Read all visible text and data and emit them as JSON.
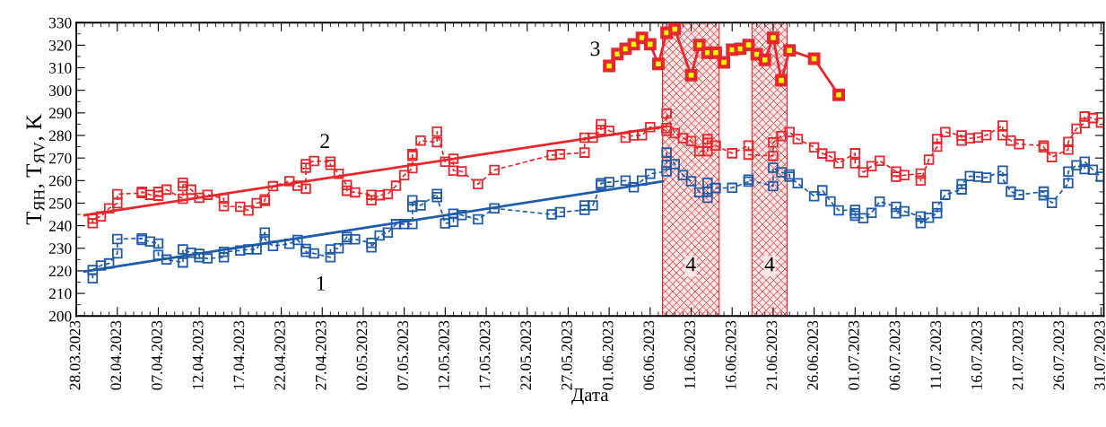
{
  "chart_data": {
    "type": "line",
    "xlabel": "Дата",
    "ylabel": "T$_{ЯН}$, T$_{ЯV}$, K",
    "xlim": [
      "2023-03-28",
      "2023-07-31T08:00"
    ],
    "ylim": [
      200,
      330
    ],
    "yticks": [
      200,
      210,
      220,
      230,
      240,
      250,
      260,
      270,
      280,
      290,
      300,
      310,
      320,
      330
    ],
    "xticks": [
      {
        "value": "2023-03-28",
        "label": "28.03.2023"
      },
      {
        "value": "2023-04-02",
        "label": "02.04.2023"
      },
      {
        "value": "2023-04-07",
        "label": "07.04.2023"
      },
      {
        "value": "2023-04-12",
        "label": "12.04.2023"
      },
      {
        "value": "2023-04-17",
        "label": "17.04.2023"
      },
      {
        "value": "2023-04-22",
        "label": "22.04.2023"
      },
      {
        "value": "2023-04-27",
        "label": "27.04.2023"
      },
      {
        "value": "2023-05-02",
        "label": "02.05.2023"
      },
      {
        "value": "2023-05-07",
        "label": "07.05.2023"
      },
      {
        "value": "2023-05-12",
        "label": "12.05.2023"
      },
      {
        "value": "2023-05-17",
        "label": "17.05.2023"
      },
      {
        "value": "2023-05-22",
        "label": "22.05.2023"
      },
      {
        "value": "2023-05-27",
        "label": "27.05.2023"
      },
      {
        "value": "2023-06-01",
        "label": "01.06.2023"
      },
      {
        "value": "2023-06-06",
        "label": "06.06.2023"
      },
      {
        "value": "2023-06-11",
        "label": "11.06.2023"
      },
      {
        "value": "2023-06-16",
        "label": "16.06.2023"
      },
      {
        "value": "2023-06-21",
        "label": "21.06.2023"
      },
      {
        "value": "2023-06-26",
        "label": "26.06.2023"
      },
      {
        "value": "2023-07-01",
        "label": "01.07.2023"
      },
      {
        "value": "2023-07-06",
        "label": "06.07.2023"
      },
      {
        "value": "2023-07-11",
        "label": "11.07.2023"
      },
      {
        "value": "2023-07-16",
        "label": "16.07.2023"
      },
      {
        "value": "2023-07-21",
        "label": "21.07.2023"
      },
      {
        "value": "2023-07-26",
        "label": "26.07.2023"
      },
      {
        "value": "2023-07-31",
        "label": "31.07.2023"
      }
    ],
    "series": [
      {
        "name": "1",
        "color": "#1f5bab",
        "marker": "square",
        "line_style": "dashed",
        "x": [
          "2023-03-30",
          "2023-03-30",
          "2023-03-31",
          "2023-04-01",
          "2023-04-02",
          "2023-04-02",
          "2023-04-05",
          "2023-04-05",
          "2023-04-06",
          "2023-04-07",
          "2023-04-07",
          "2023-04-08",
          "2023-04-10",
          "2023-04-10",
          "2023-04-11",
          "2023-04-12",
          "2023-04-12",
          "2023-04-13",
          "2023-04-15",
          "2023-04-15",
          "2023-04-17",
          "2023-04-18",
          "2023-04-19",
          "2023-04-20",
          "2023-04-20",
          "2023-04-21",
          "2023-04-23",
          "2023-04-24",
          "2023-04-25",
          "2023-04-25",
          "2023-04-26",
          "2023-04-28",
          "2023-04-28",
          "2023-04-29",
          "2023-04-30",
          "2023-04-30",
          "2023-05-01",
          "2023-05-03",
          "2023-05-03",
          "2023-05-04",
          "2023-05-05",
          "2023-05-06",
          "2023-05-07",
          "2023-05-08",
          "2023-05-08",
          "2023-05-08",
          "2023-05-09",
          "2023-05-11",
          "2023-05-11",
          "2023-05-12",
          "2023-05-13",
          "2023-05-13",
          "2023-05-14",
          "2023-05-16",
          "2023-05-18",
          "2023-05-25",
          "2023-05-26",
          "2023-05-29",
          "2023-05-29",
          "2023-05-30",
          "2023-05-31",
          "2023-05-31",
          "2023-06-01",
          "2023-06-03",
          "2023-06-04",
          "2023-06-05",
          "2023-06-06",
          "2023-06-08",
          "2023-06-08",
          "2023-06-08",
          "2023-06-09",
          "2023-06-10",
          "2023-06-11",
          "2023-06-12",
          "2023-06-13",
          "2023-06-13",
          "2023-06-13",
          "2023-06-14",
          "2023-06-16",
          "2023-06-18",
          "2023-06-18",
          "2023-06-21",
          "2023-06-21",
          "2023-06-22",
          "2023-06-23",
          "2023-06-23",
          "2023-06-24",
          "2023-06-26",
          "2023-06-27",
          "2023-06-28",
          "2023-06-29",
          "2023-07-01",
          "2023-07-01",
          "2023-07-01",
          "2023-07-02",
          "2023-07-03",
          "2023-07-04",
          "2023-07-06",
          "2023-07-06",
          "2023-07-07",
          "2023-07-09",
          "2023-07-09",
          "2023-07-10",
          "2023-07-11",
          "2023-07-11",
          "2023-07-12",
          "2023-07-14",
          "2023-07-14",
          "2023-07-15",
          "2023-07-16",
          "2023-07-17",
          "2023-07-19",
          "2023-07-19",
          "2023-07-20",
          "2023-07-21",
          "2023-07-24",
          "2023-07-24",
          "2023-07-25",
          "2023-07-27",
          "2023-07-27",
          "2023-07-28",
          "2023-07-29",
          "2023-07-29",
          "2023-07-30",
          "2023-07-31"
        ],
        "values": [
          216.7,
          220.4,
          222.4,
          223.3,
          227.7,
          234.1,
          234.4,
          233.7,
          233,
          232.1,
          227,
          225,
          223.7,
          229.5,
          228,
          227.5,
          226,
          225.5,
          226,
          228.4,
          229,
          229.5,
          229.5,
          237,
          234,
          231,
          232,
          233.7,
          229.7,
          228.4,
          227.7,
          226,
          229.5,
          230,
          235,
          234,
          234,
          232.4,
          230.4,
          235.7,
          237,
          240.7,
          240.7,
          240.7,
          248.4,
          251.3,
          249,
          254.1,
          252.7,
          241,
          241.7,
          245.3,
          244.7,
          242.8,
          247.7,
          245,
          246,
          247,
          249,
          249,
          258,
          258.8,
          259.3,
          260,
          257,
          260,
          263,
          264.1,
          267,
          272.4,
          267.3,
          262.4,
          259.7,
          254.8,
          252.4,
          255,
          259,
          256.7,
          256.8,
          259.5,
          260.4,
          257.5,
          265.7,
          263.7,
          262.7,
          261.7,
          258.8,
          253.1,
          255.7,
          250.8,
          246.8,
          247,
          245.5,
          244.4,
          243.3,
          245.7,
          250.7,
          248.4,
          245.5,
          246.4,
          244.1,
          241.1,
          243.5,
          245.5,
          248.4,
          253.7,
          256.1,
          258.4,
          262,
          261.7,
          261.3,
          264.4,
          260.7,
          255.1,
          253.7,
          255.1,
          253.5,
          250.1,
          258.8,
          264,
          266.8,
          265.1,
          268.4,
          264.8,
          261.7
        ]
      },
      {
        "name": "2",
        "color": "#e8262b",
        "marker": "square",
        "line_style": "dashed",
        "x": [
          "2023-03-30",
          "2023-03-30",
          "2023-03-31",
          "2023-04-01",
          "2023-04-02",
          "2023-04-02",
          "2023-04-05",
          "2023-04-05",
          "2023-04-06",
          "2023-04-07",
          "2023-04-07",
          "2023-04-08",
          "2023-04-10",
          "2023-04-10",
          "2023-04-10",
          "2023-04-11",
          "2023-04-12",
          "2023-04-13",
          "2023-04-15",
          "2023-04-15",
          "2023-04-17",
          "2023-04-18",
          "2023-04-19",
          "2023-04-20",
          "2023-04-20",
          "2023-04-21",
          "2023-04-23",
          "2023-04-24",
          "2023-04-25",
          "2023-04-25",
          "2023-04-25",
          "2023-04-26",
          "2023-04-28",
          "2023-04-28",
          "2023-04-29",
          "2023-04-30",
          "2023-04-30",
          "2023-05-01",
          "2023-05-03",
          "2023-05-03",
          "2023-05-04",
          "2023-05-05",
          "2023-05-06",
          "2023-05-07",
          "2023-05-08",
          "2023-05-08",
          "2023-05-08",
          "2023-05-09",
          "2023-05-11",
          "2023-05-11",
          "2023-05-12",
          "2023-05-13",
          "2023-05-13",
          "2023-05-14",
          "2023-05-16",
          "2023-05-18",
          "2023-05-25",
          "2023-05-26",
          "2023-05-29",
          "2023-05-29",
          "2023-05-30",
          "2023-05-31",
          "2023-05-31",
          "2023-06-01",
          "2023-06-03",
          "2023-06-04",
          "2023-06-05",
          "2023-06-06",
          "2023-06-08",
          "2023-06-08",
          "2023-06-08",
          "2023-06-09",
          "2023-06-10",
          "2023-06-11",
          "2023-06-12",
          "2023-06-13",
          "2023-06-13",
          "2023-06-13",
          "2023-06-14",
          "2023-06-16",
          "2023-06-18",
          "2023-06-18",
          "2023-06-21",
          "2023-06-21",
          "2023-06-22",
          "2023-06-23",
          "2023-06-24",
          "2023-06-26",
          "2023-06-27",
          "2023-06-28",
          "2023-06-29",
          "2023-07-01",
          "2023-07-01",
          "2023-07-02",
          "2023-07-03",
          "2023-07-04",
          "2023-07-06",
          "2023-07-06",
          "2023-07-07",
          "2023-07-09",
          "2023-07-09",
          "2023-07-10",
          "2023-07-11",
          "2023-07-11",
          "2023-07-12",
          "2023-07-14",
          "2023-07-14",
          "2023-07-15",
          "2023-07-16",
          "2023-07-17",
          "2023-07-19",
          "2023-07-19",
          "2023-07-20",
          "2023-07-21",
          "2023-07-24",
          "2023-07-24",
          "2023-07-25",
          "2023-07-27",
          "2023-07-27",
          "2023-07-28",
          "2023-07-29",
          "2023-07-29",
          "2023-07-30",
          "2023-07-31"
        ],
        "values": [
          241.1,
          243.1,
          244.1,
          247.7,
          250,
          254,
          254.5,
          255,
          253.7,
          253.3,
          255,
          256,
          252,
          257.5,
          259,
          256,
          252.4,
          253.7,
          252,
          248.7,
          248.4,
          246.7,
          250,
          251,
          251.7,
          257.5,
          259.7,
          257.7,
          256.4,
          265.7,
          267.3,
          268.7,
          268.4,
          267,
          263,
          258,
          255.5,
          254.8,
          253.7,
          251.3,
          253.5,
          254,
          257.7,
          262.4,
          265.5,
          271,
          271.7,
          277.7,
          277,
          281.7,
          268.4,
          269.7,
          264.4,
          264.1,
          258.4,
          264.7,
          271.3,
          271.7,
          272.4,
          279,
          279,
          282.4,
          285,
          282.1,
          279,
          280,
          280.1,
          283.7,
          282.1,
          283.3,
          289.7,
          281,
          278.8,
          277.5,
          273,
          273,
          276.7,
          278.4,
          275.5,
          272.1,
          275.5,
          271.5,
          270.9,
          276.9,
          279.7,
          281.5,
          278.4,
          274.7,
          272,
          270.7,
          267.7,
          272.1,
          267.7,
          263.7,
          266.4,
          268.8,
          264,
          261.7,
          262.4,
          263.1,
          260,
          269.3,
          275,
          278.4,
          281.5,
          280,
          277.7,
          278.7,
          279.1,
          280.1,
          284.4,
          280.1,
          277.7,
          276.1,
          275.5,
          274.7,
          270.4,
          273.7,
          277.1,
          283,
          285.5,
          288.4,
          287.7,
          285.7
        ]
      },
      {
        "name": "3",
        "color": "#e8262b",
        "marker": "square",
        "line_style": "solid",
        "x": [
          "2023-06-01",
          "2023-06-02",
          "2023-06-03",
          "2023-06-04",
          "2023-06-05",
          "2023-06-06",
          "2023-06-07",
          "2023-06-08",
          "2023-06-09",
          "2023-06-11",
          "2023-06-12",
          "2023-06-13",
          "2023-06-14",
          "2023-06-15",
          "2023-06-16",
          "2023-06-17",
          "2023-06-18",
          "2023-06-19",
          "2023-06-20",
          "2023-06-21",
          "2023-06-22",
          "2023-06-23",
          "2023-06-26",
          "2023-06-29"
        ],
        "values": [
          310.8,
          316.1,
          318.4,
          320.4,
          323.3,
          320.4,
          311.7,
          325.5,
          327.1,
          306.7,
          320.1,
          316.7,
          316.7,
          312.4,
          318,
          318.4,
          320.1,
          316,
          313.5,
          323.3,
          304.4,
          317.7,
          314,
          298
        ]
      },
      {
        "color": "#1f5bab",
        "marker": "none",
        "line_style": "solid",
        "x": [
          "2023-03-29",
          "2023-06-07T14:00"
        ],
        "values": [
          219.7,
          259.7
        ]
      },
      {
        "color": "#e8262b",
        "marker": "none",
        "line_style": "solid",
        "x": [
          "2023-03-29",
          "2023-06-07T14:00"
        ],
        "values": [
          244.7,
          283.8
        ]
      }
    ],
    "bands": [
      {
        "axis": "x",
        "from": "2023-06-07T12:00",
        "to": "2023-06-14T10:00",
        "label": "4",
        "color": "#e8262b"
      },
      {
        "axis": "x",
        "from": "2023-06-18T10:00",
        "to": "2023-06-22T17:00",
        "label": "4",
        "color": "#e8262b"
      }
    ]
  }
}
